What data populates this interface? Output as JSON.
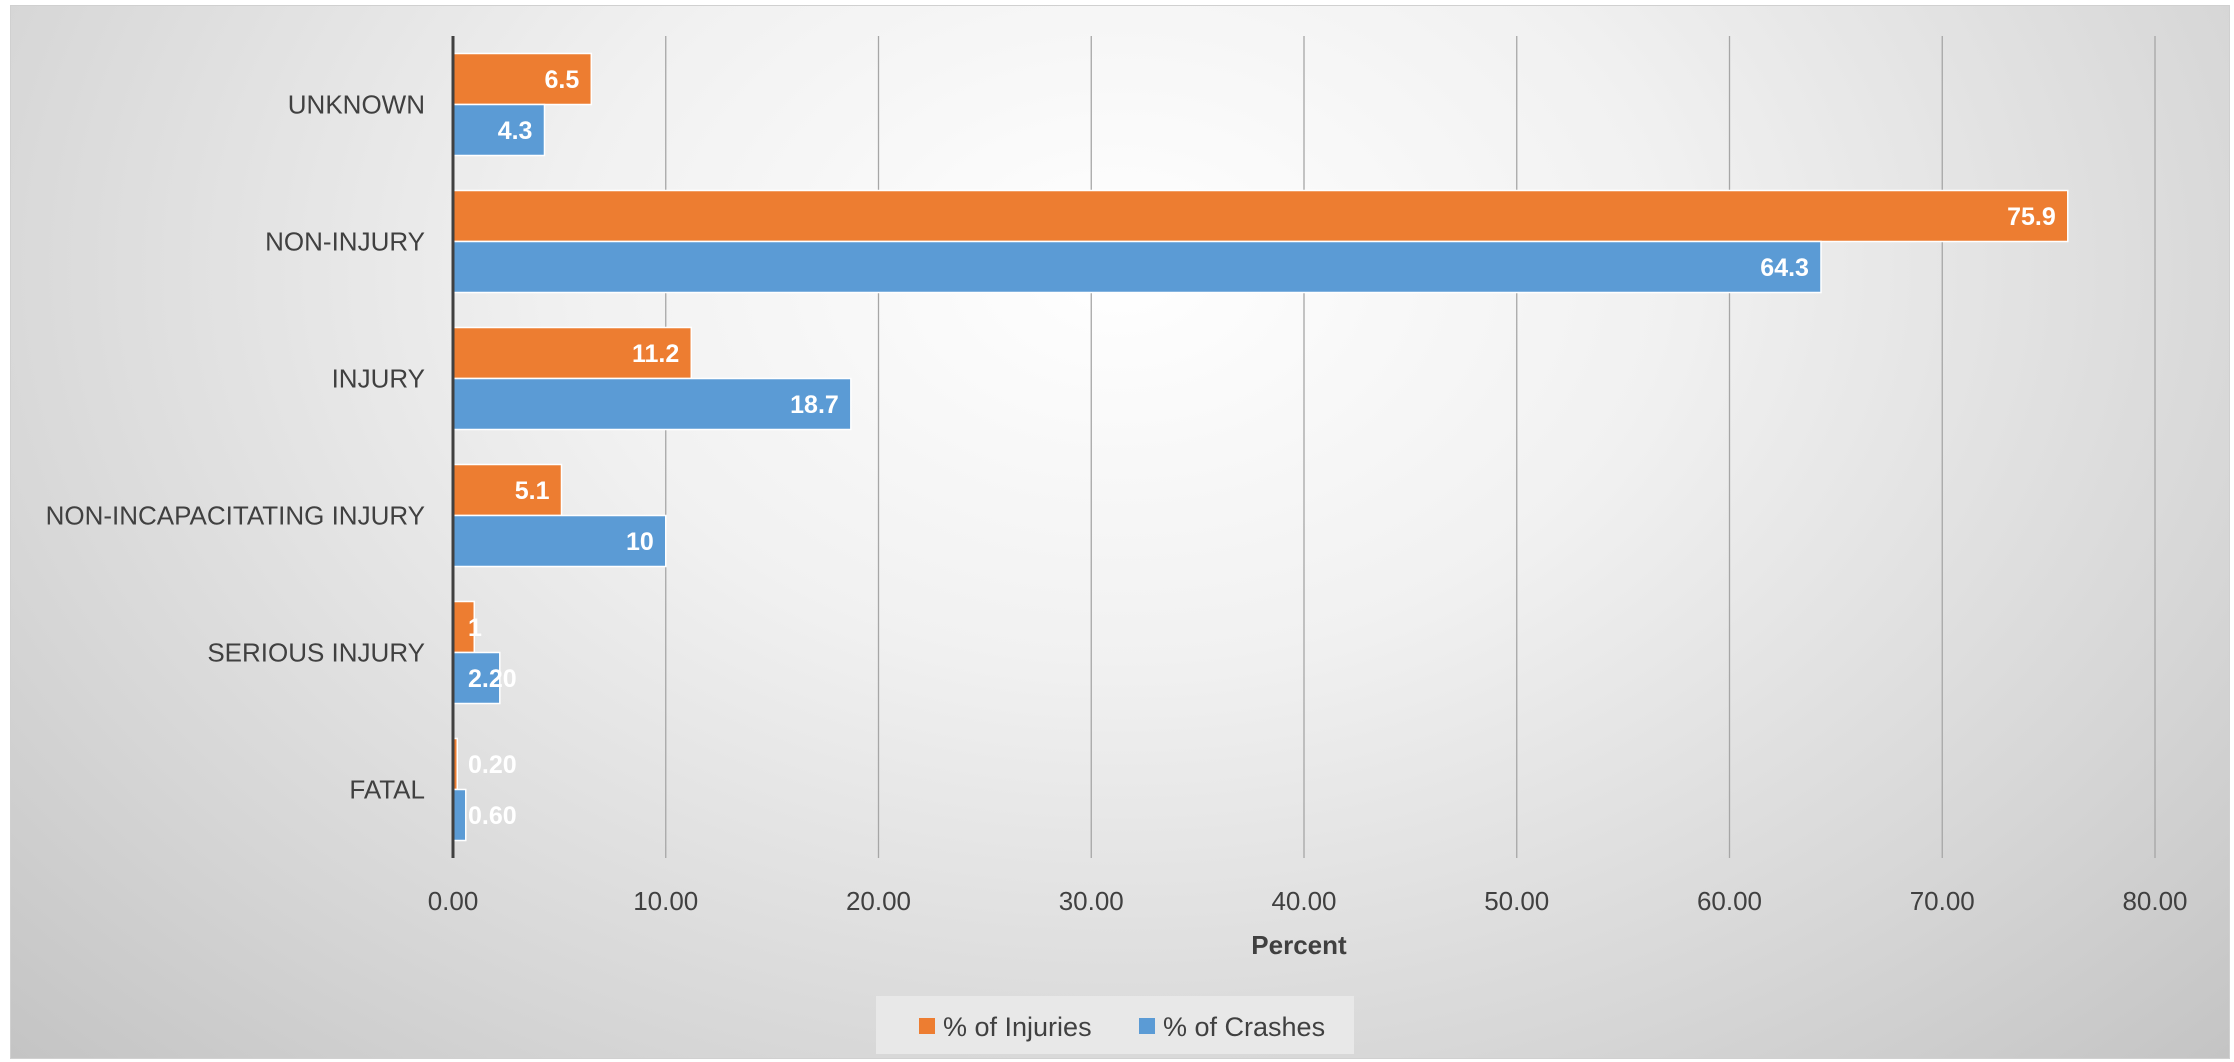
{
  "chart_data": {
    "type": "bar",
    "orientation": "horizontal",
    "categories": [
      "FATAL",
      "SERIOUS INJURY",
      "NON-INCAPACITATING INJURY",
      "INJURY",
      "NON-INJURY",
      "UNKNOWN"
    ],
    "series": [
      {
        "name": "% of Injuries",
        "color": "#ED7D31",
        "values": [
          0.2,
          1,
          5.1,
          11.2,
          75.9,
          6.5
        ],
        "labels": [
          "0.20",
          "1",
          "5.1",
          "11.2",
          "75.9",
          "6.5"
        ]
      },
      {
        "name": "% of Crashes",
        "color": "#5B9BD5",
        "values": [
          0.6,
          2.2,
          10,
          18.7,
          64.3,
          4.3
        ],
        "labels": [
          "0.60",
          "2.20",
          "10",
          "18.7",
          "64.3",
          "4.3"
        ]
      }
    ],
    "xlabel": "Percent",
    "xlim": [
      0,
      80
    ],
    "xticks": [
      0,
      10,
      20,
      30,
      40,
      50,
      60,
      70,
      80
    ],
    "xtick_labels": [
      "0.00",
      "10.00",
      "20.00",
      "30.00",
      "40.00",
      "50.00",
      "60.00",
      "70.00",
      "80.00"
    ],
    "grid": "vertical",
    "legend": "bottom"
  }
}
